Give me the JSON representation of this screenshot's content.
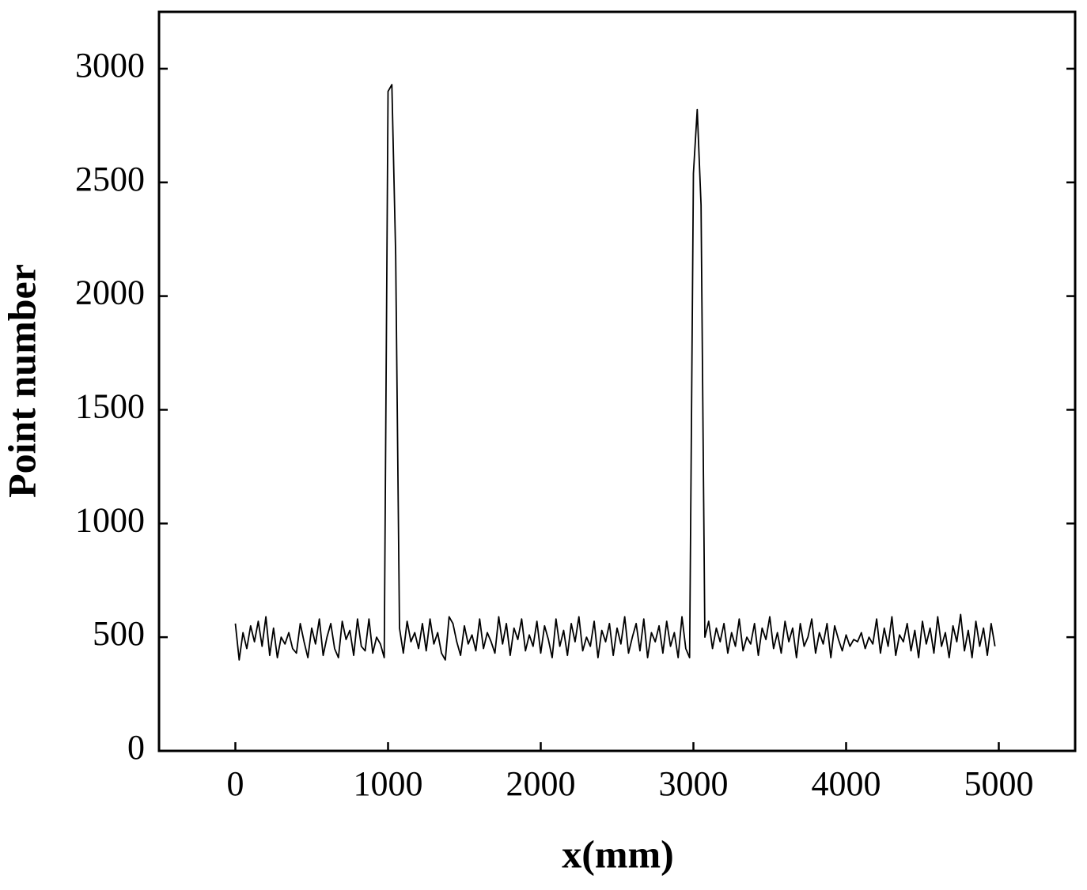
{
  "chart_data": {
    "type": "line",
    "xlabel": "x(mm)",
    "ylabel": "Point number",
    "x": [
      0,
      25,
      50,
      75,
      100,
      125,
      150,
      175,
      200,
      225,
      250,
      275,
      300,
      325,
      350,
      375,
      400,
      425,
      450,
      475,
      500,
      525,
      550,
      575,
      600,
      625,
      650,
      675,
      700,
      725,
      750,
      775,
      800,
      825,
      850,
      875,
      900,
      925,
      950,
      975,
      1000,
      1025,
      1050,
      1075,
      1100,
      1125,
      1150,
      1175,
      1200,
      1225,
      1250,
      1275,
      1300,
      1325,
      1350,
      1375,
      1400,
      1425,
      1450,
      1475,
      1500,
      1525,
      1550,
      1575,
      1600,
      1625,
      1650,
      1675,
      1700,
      1725,
      1750,
      1775,
      1800,
      1825,
      1850,
      1875,
      1900,
      1925,
      1950,
      1975,
      2000,
      2025,
      2050,
      2075,
      2100,
      2125,
      2150,
      2175,
      2200,
      2225,
      2250,
      2275,
      2300,
      2325,
      2350,
      2375,
      2400,
      2425,
      2450,
      2475,
      2500,
      2525,
      2550,
      2575,
      2600,
      2625,
      2650,
      2675,
      2700,
      2725,
      2750,
      2775,
      2800,
      2825,
      2850,
      2875,
      2900,
      2925,
      2950,
      2975,
      3000,
      3025,
      3050,
      3075,
      3100,
      3125,
      3150,
      3175,
      3200,
      3225,
      3250,
      3275,
      3300,
      3325,
      3350,
      3375,
      3400,
      3425,
      3450,
      3475,
      3500,
      3525,
      3550,
      3575,
      3600,
      3625,
      3650,
      3675,
      3700,
      3725,
      3750,
      3775,
      3800,
      3825,
      3850,
      3875,
      3900,
      3925,
      3950,
      3975,
      4000,
      4025,
      4050,
      4075,
      4100,
      4125,
      4150,
      4175,
      4200,
      4225,
      4250,
      4275,
      4300,
      4325,
      4350,
      4375,
      4400,
      4425,
      4450,
      4475,
      4500,
      4525,
      4550,
      4575,
      4600,
      4625,
      4650,
      4675,
      4700,
      4725,
      4750,
      4775,
      4800,
      4825,
      4850,
      4875,
      4900,
      4925,
      4950,
      4975
    ],
    "series": [
      {
        "color": "#000000",
        "values": [
          560,
          400,
          520,
          450,
          550,
          480,
          570,
          460,
          590,
          420,
          540,
          410,
          500,
          470,
          520,
          450,
          430,
          560,
          480,
          410,
          540,
          470,
          580,
          420,
          500,
          560,
          450,
          410,
          570,
          490,
          530,
          420,
          580,
          460,
          440,
          580,
          430,
          500,
          470,
          410,
          2900,
          2930,
          2180,
          540,
          430,
          570,
          480,
          520,
          450,
          560,
          440,
          580,
          470,
          520,
          430,
          400,
          590,
          560,
          480,
          420,
          550,
          470,
          510,
          440,
          580,
          450,
          520,
          480,
          430,
          590,
          470,
          560,
          420,
          540,
          490,
          580,
          440,
          510,
          460,
          570,
          430,
          550,
          490,
          410,
          580,
          460,
          530,
          420,
          560,
          480,
          590,
          440,
          500,
          460,
          570,
          410,
          530,
          480,
          560,
          420,
          540,
          470,
          590,
          430,
          500,
          560,
          440,
          580,
          410,
          520,
          480,
          550,
          430,
          570,
          460,
          520,
          410,
          590,
          450,
          410,
          2540,
          2820,
          2400,
          500,
          570,
          450,
          540,
          480,
          560,
          430,
          520,
          460,
          580,
          440,
          500,
          470,
          560,
          420,
          540,
          490,
          590,
          450,
          520,
          430,
          570,
          480,
          540,
          410,
          560,
          460,
          500,
          580,
          430,
          520,
          470,
          560,
          410,
          550,
          490,
          440,
          510,
          460,
          490,
          480,
          520,
          450,
          500,
          470,
          580,
          430,
          540,
          460,
          590,
          420,
          510,
          480,
          560,
          440,
          530,
          410,
          570,
          470,
          540,
          430,
          590,
          460,
          520,
          410,
          550,
          480,
          600,
          440,
          530,
          410,
          570,
          460,
          540,
          420,
          560,
          460
        ]
      }
    ],
    "xlim": [
      -500,
      5500
    ],
    "xticks": [
      0,
      1000,
      2000,
      3000,
      4000,
      5000
    ],
    "ylim": [
      0,
      3250
    ],
    "yticks": [
      0,
      500,
      1000,
      1500,
      2000,
      2500,
      3000
    ],
    "grid": false
  }
}
